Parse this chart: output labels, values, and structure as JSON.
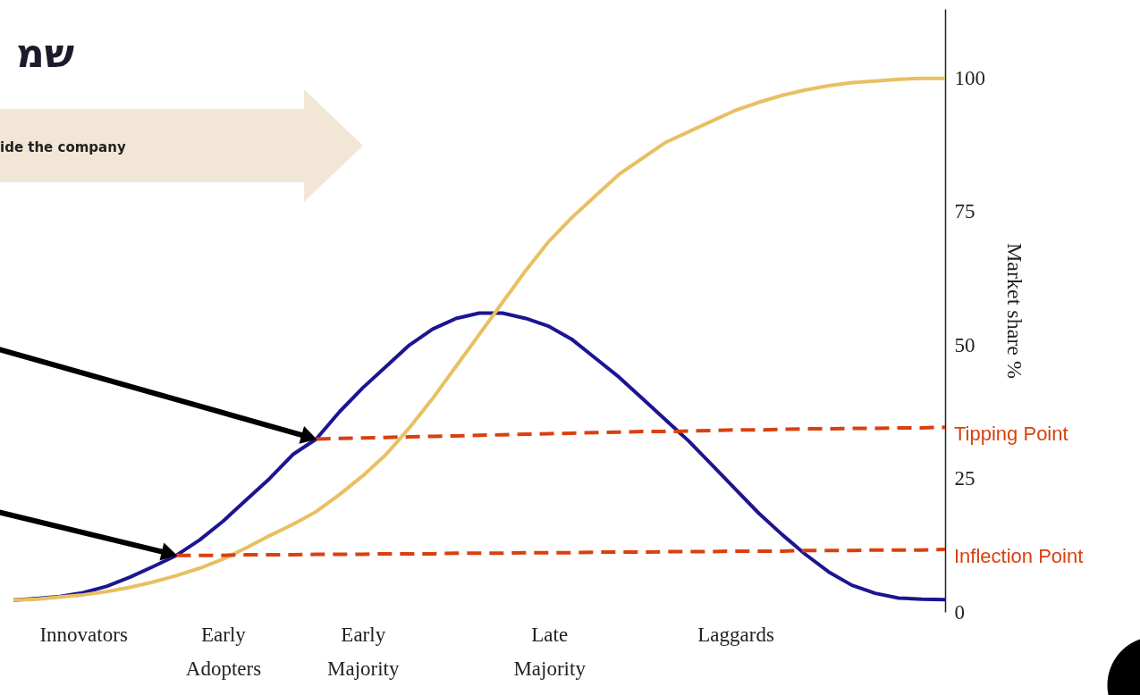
{
  "chart_data": {
    "type": "line",
    "title": "שמ",
    "ylabel": "Market share %",
    "annotations": [
      "ide the company"
    ],
    "categories": [
      null,
      null,
      null,
      "Innovators",
      null,
      null,
      null,
      null,
      null,
      "Early Adopters",
      null,
      null,
      null,
      null,
      null,
      "Early Majority",
      null,
      null,
      null,
      null,
      null,
      null,
      null,
      "Late Majority",
      null,
      null,
      null,
      null,
      null,
      null,
      null,
      "Laggards",
      null,
      null,
      null,
      null,
      null,
      null,
      null,
      null,
      null
    ],
    "ylim": [
      0,
      113
    ],
    "yticks": [
      0,
      25,
      50,
      75,
      100
    ],
    "grid": false,
    "marker": "none",
    "series": [
      {
        "color": "#1c1591",
        "values": [
          2.2,
          2.5,
          2.9,
          3.6,
          4.8,
          6.5,
          8.5,
          10.6,
          13.5,
          17,
          21,
          25,
          29.5,
          32.4,
          37.5,
          42,
          46,
          50,
          53,
          55,
          56,
          56,
          55,
          53.5,
          51,
          47.5,
          44,
          40,
          36,
          32,
          27.5,
          23,
          18.5,
          14.5,
          10.8,
          7.5,
          5,
          3.5,
          2.6,
          2.4,
          2.3
        ]
      },
      {
        "color": "#e8c061",
        "values": [
          2.2,
          2.4,
          2.8,
          3.2,
          3.8,
          4.6,
          5.6,
          6.8,
          8.2,
          9.9,
          12,
          14.3,
          16.4,
          18.8,
          22,
          25.5,
          29.5,
          34.5,
          40,
          46,
          52,
          58,
          64,
          69.5,
          74,
          78,
          82,
          85,
          88,
          90,
          92,
          94,
          95.5,
          96.8,
          97.8,
          98.6,
          99.2,
          99.5,
          99.8,
          100,
          100
        ]
      },
      {
        "name": "Tipping Point",
        "color": "#d9400f",
        "line_style": "dashed",
        "values": [
          null,
          null,
          null,
          null,
          null,
          null,
          null,
          null,
          null,
          null,
          null,
          null,
          null,
          32.4,
          32.5,
          32.6,
          32.7,
          32.8,
          32.9,
          33.0,
          33.1,
          33.2,
          33.3,
          33.4,
          33.5,
          33.6,
          33.7,
          33.8,
          33.8,
          33.9,
          34.0,
          34.1,
          34.1,
          34.2,
          34.3,
          34.3,
          34.4,
          34.4,
          34.5,
          34.5,
          34.6
        ]
      },
      {
        "name": "Inflection Point",
        "color": "#d9400f",
        "line_style": "dashed",
        "values": [
          null,
          null,
          null,
          null,
          null,
          null,
          null,
          10.6,
          10.6,
          10.6,
          10.7,
          10.7,
          10.7,
          10.8,
          10.8,
          10.8,
          10.9,
          10.9,
          10.9,
          11.0,
          11.0,
          11.0,
          11.1,
          11.1,
          11.1,
          11.2,
          11.2,
          11.2,
          11.3,
          11.3,
          11.3,
          11.4,
          11.4,
          11.4,
          11.5,
          11.5,
          11.5,
          11.6,
          11.6,
          11.6,
          11.7
        ]
      }
    ]
  }
}
